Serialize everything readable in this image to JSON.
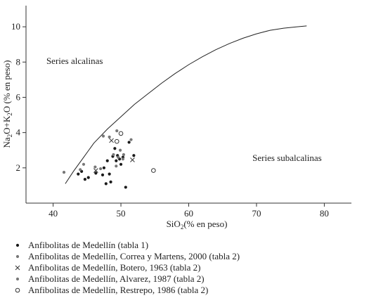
{
  "chart_data": {
    "type": "scatter",
    "xlabel_main": "SiO",
    "xlabel_sub": "2",
    "xlabel_rest": "(% en peso)",
    "ylabel_a": "Na",
    "ylabel_a_sub": "2",
    "ylabel_b": "O+K",
    "ylabel_b_sub": "2",
    "ylabel_c": "O (% en peso)",
    "xlim": [
      36,
      84
    ],
    "ylim": [
      0,
      11.2
    ],
    "x_ticks": [
      40,
      50,
      60,
      70,
      80
    ],
    "y_ticks": [
      2,
      4,
      6,
      8,
      10
    ],
    "grid": false,
    "annotations": [
      {
        "text": "Series alcalinas",
        "x": 39,
        "y": 7.9
      },
      {
        "text": "Series subalcalinas",
        "x": 69.4,
        "y": 2.4
      }
    ],
    "boundary_curve": [
      [
        41.8,
        1.1
      ],
      [
        43.0,
        1.8
      ],
      [
        44.5,
        2.6
      ],
      [
        46.0,
        3.4
      ],
      [
        48.0,
        4.2
      ],
      [
        50.0,
        4.9
      ],
      [
        52.0,
        5.6
      ],
      [
        54.0,
        6.2
      ],
      [
        56.0,
        6.8
      ],
      [
        58.0,
        7.35
      ],
      [
        60.0,
        7.85
      ],
      [
        62.0,
        8.3
      ],
      [
        64.0,
        8.7
      ],
      [
        66.0,
        9.05
      ],
      [
        68.0,
        9.35
      ],
      [
        70.0,
        9.6
      ],
      [
        72.0,
        9.8
      ],
      [
        74.0,
        9.92
      ],
      [
        76.0,
        10.0
      ],
      [
        77.4,
        10.05
      ]
    ],
    "series": [
      {
        "name": "Anfibolitas de Medellín (tabla 1)",
        "marker": "filled-dot",
        "color": "#1a1a1a",
        "points": [
          [
            43.7,
            1.65
          ],
          [
            44.2,
            1.8
          ],
          [
            44.7,
            1.35
          ],
          [
            45.2,
            1.45
          ],
          [
            46.3,
            1.7
          ],
          [
            47.3,
            1.6
          ],
          [
            47.5,
            2.0
          ],
          [
            47.8,
            1.1
          ],
          [
            48.0,
            2.4
          ],
          [
            48.3,
            1.65
          ],
          [
            48.5,
            1.2
          ],
          [
            48.8,
            2.65
          ],
          [
            49.1,
            3.1
          ],
          [
            49.3,
            2.4
          ],
          [
            49.5,
            2.7
          ],
          [
            49.8,
            2.5
          ],
          [
            50.0,
            2.2
          ],
          [
            50.3,
            2.6
          ],
          [
            50.7,
            0.9
          ],
          [
            51.2,
            3.45
          ],
          [
            51.9,
            2.7
          ]
        ]
      },
      {
        "name": "Anfibolitas de Medellín, Correa y Martens, 2000 (tabla 2)",
        "marker": "gray-dot",
        "color": "#777777",
        "points": [
          [
            41.6,
            1.75
          ],
          [
            44.0,
            1.9
          ],
          [
            44.5,
            2.2
          ],
          [
            46.2,
            2.05
          ],
          [
            47.4,
            3.8
          ],
          [
            48.3,
            3.75
          ],
          [
            48.9,
            2.75
          ],
          [
            49.4,
            4.1
          ],
          [
            49.6,
            2.6
          ],
          [
            49.9,
            3.0
          ],
          [
            50.3,
            2.5
          ],
          [
            51.5,
            3.6
          ]
        ]
      },
      {
        "name": "Anfibolitas de Medellín, Botero, 1963 (tabla 2)",
        "marker": "cross",
        "color": "#333333",
        "points": [
          [
            46.3,
            1.85
          ],
          [
            48.6,
            3.55
          ],
          [
            51.7,
            2.45
          ]
        ]
      },
      {
        "name": "Anfibolitas de Medellín, Alvarez, 1987 (tabla 2)",
        "marker": "gray-dot",
        "color": "#777777",
        "points": [
          [
            47.0,
            1.95
          ],
          [
            49.3,
            2.1
          ],
          [
            50.4,
            2.75
          ]
        ]
      },
      {
        "name": "Anfibolitas de Medellín, Restrepo, 1986 (tabla 2)",
        "marker": "open-circle",
        "color": "#333333",
        "points": [
          [
            49.4,
            3.5
          ],
          [
            50.0,
            3.95
          ],
          [
            54.8,
            1.85
          ]
        ]
      }
    ]
  }
}
